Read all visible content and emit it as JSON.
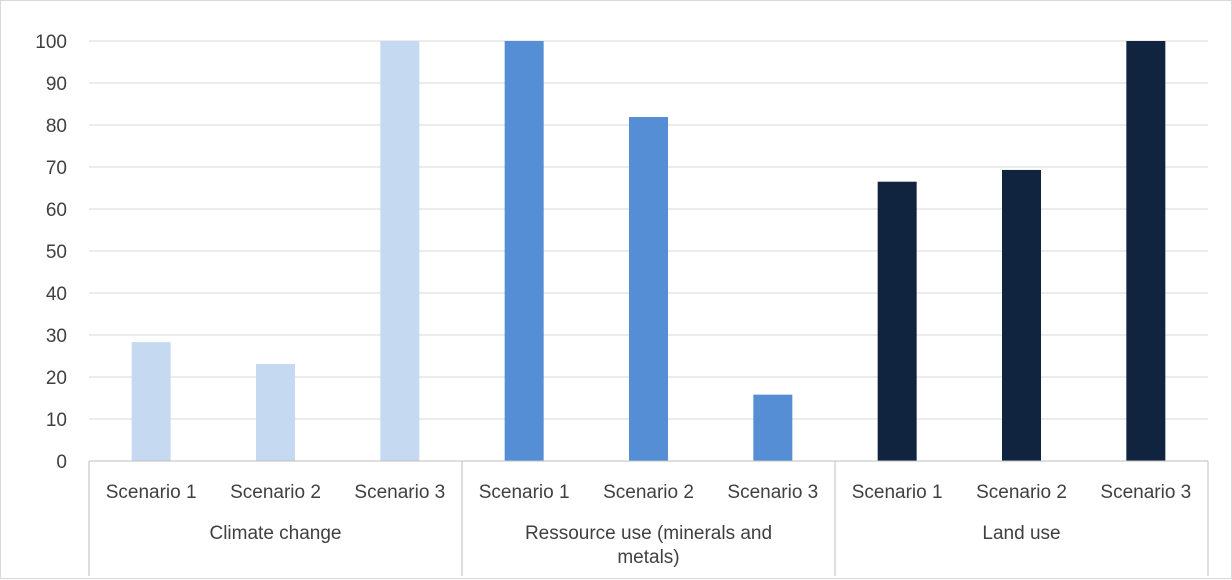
{
  "chart_data": {
    "type": "bar",
    "ylim": [
      0,
      100
    ],
    "ytick_step": 10,
    "yticks": [
      "0",
      "10",
      "20",
      "30",
      "40",
      "50",
      "60",
      "70",
      "80",
      "90",
      "100"
    ],
    "grid": true,
    "legend": "none",
    "groups": [
      {
        "label": "Climate change",
        "label_lines": [
          "Climate change"
        ],
        "color": "#c5d9f1",
        "categories": [
          "Scenario 1",
          "Scenario 2",
          "Scenario 3"
        ],
        "values": [
          28.3,
          23.1,
          100
        ]
      },
      {
        "label": "Ressource use (minerals and metals)",
        "label_lines": [
          "Ressource use (minerals and",
          "metals)"
        ],
        "color": "#558ed5",
        "categories": [
          "Scenario 1",
          "Scenario 2",
          "Scenario 3"
        ],
        "values": [
          100,
          81.9,
          15.8
        ]
      },
      {
        "label": "Land use",
        "label_lines": [
          "Land use"
        ],
        "color": "#10233f",
        "categories": [
          "Scenario 1",
          "Scenario 2",
          "Scenario 3"
        ],
        "values": [
          66.5,
          69.3,
          100
        ]
      }
    ]
  }
}
